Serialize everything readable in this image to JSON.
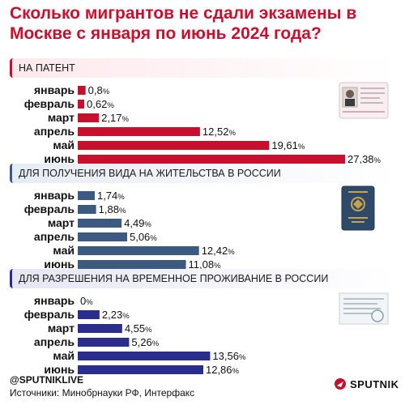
{
  "title": "Сколько мигрантов не сдали экзамены в Москве с января по июнь 2024 года?",
  "colors": {
    "accent": "#c8102e",
    "patent": "#c8102e",
    "residence": "#3c5a80",
    "temporary": "#2b2d8c"
  },
  "chart_data": [
    {
      "type": "bar",
      "title": "НА ПАТЕНТ",
      "categories": [
        "январь",
        "февраль",
        "март",
        "апрель",
        "май",
        "июнь"
      ],
      "values": [
        0.8,
        0.62,
        2.17,
        12.52,
        19.61,
        27.38
      ],
      "labels": [
        "0,8",
        "0,62",
        "2,17",
        "12,52",
        "19,61",
        "27,38"
      ],
      "unit": "%",
      "color": "#c8102e",
      "icon": "patent-document-icon"
    },
    {
      "type": "bar",
      "title": "ДЛЯ ПОЛУЧЕНИЯ ВИДА НА ЖИТЕЛЬСТВА В РОССИИ",
      "categories": [
        "январь",
        "февраль",
        "март",
        "апрель",
        "май",
        "июнь"
      ],
      "values": [
        1.74,
        1.88,
        4.49,
        5.06,
        12.42,
        11.08
      ],
      "labels": [
        "1,74",
        "1,88",
        "4,49",
        "5,06",
        "12,42",
        "11,08"
      ],
      "unit": "%",
      "color": "#3c5a80",
      "icon": "residence-permit-booklet-icon"
    },
    {
      "type": "bar",
      "title": "ДЛЯ РАЗРЕШЕНИЯ НА ВРЕМЕННОЕ ПРОЖИВАНИЕ В РОССИИ",
      "categories": [
        "январь",
        "февраль",
        "март",
        "апрель",
        "май",
        "июнь"
      ],
      "values": [
        0,
        2.23,
        4.55,
        5.26,
        13.56,
        12.86
      ],
      "labels": [
        "0",
        "2,23",
        "4,55",
        "5,26",
        "13,56",
        "12,86"
      ],
      "unit": "%",
      "color": "#2b2d8c",
      "icon": "temporary-permit-stamp-icon"
    }
  ],
  "footer": {
    "handle": "@SPUTNIKLIVE",
    "source": "Источники: Минобрнауки РФ, Интерфакс",
    "logo_text": "SPUTNIK"
  },
  "watermark": "SPUTNIK"
}
